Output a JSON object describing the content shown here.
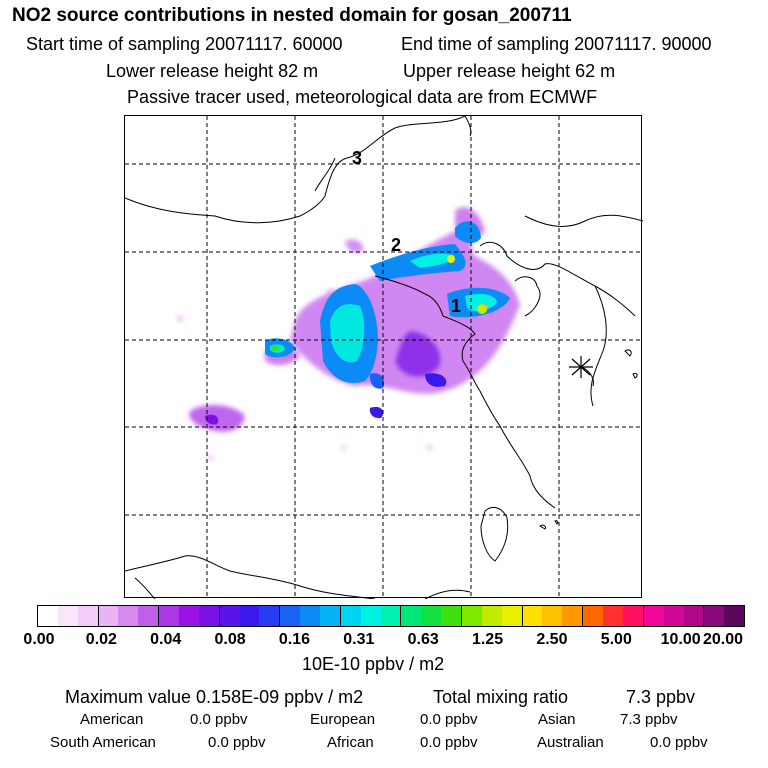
{
  "header": {
    "title": "NO2 source contributions in nested domain for gosan_200711",
    "start_label": "Start time of sampling 20071117. 60000",
    "end_label": "End time of sampling 20071117. 90000",
    "lower_label": "Lower release height   82 m",
    "upper_label": "Upper release height   62 m",
    "tracer_label": "Passive tracer used, meteorological data are from ECMWF"
  },
  "chart_data": {
    "type": "heatmap",
    "title": "NO2 source contributions in nested domain for gosan_200711",
    "colorbar_ticks": [
      "0.00",
      "0.02",
      "0.04",
      "0.08",
      "0.16",
      "0.31",
      "0.63",
      "1.25",
      "2.50",
      "5.00",
      "10.00",
      "20.00"
    ],
    "colorbar_unit": "10E-10 ppbv / m2",
    "trajectory_labels": [
      "1",
      "2",
      "3"
    ],
    "grid": true,
    "receptor_marker": "star"
  },
  "colorbar_colors": [
    "#ffffff",
    "#f9e6fb",
    "#f2cdf7",
    "#eab3f3",
    "#d68aee",
    "#c25fea",
    "#ad36e6",
    "#9b12e2",
    "#7a12e6",
    "#5a14ea",
    "#3b18ee",
    "#2a3cf2",
    "#1a62f5",
    "#0c8bf6",
    "#05b2f5",
    "#00d4f2",
    "#00f0e4",
    "#00f0b0",
    "#00e878",
    "#10e040",
    "#40e010",
    "#80e800",
    "#c0ec00",
    "#e8f000",
    "#ffe000",
    "#ffc000",
    "#ff9800",
    "#ff6800",
    "#ff3030",
    "#ff1060",
    "#f0089a",
    "#d0089a",
    "#b0088a",
    "#8a087a",
    "#5a065a"
  ],
  "footer": {
    "max_label": "Maximum value  0.158E-09 ppbv / m2",
    "total_label": "Total mixing ratio",
    "total_value": "7.3 ppbv",
    "american_label": "American",
    "american_value": "0.0 ppbv",
    "european_label": "European",
    "european_value": "0.0 ppbv",
    "asian_label": "Asian",
    "asian_value": "7.3 ppbv",
    "south_american_label": "South American",
    "south_american_value": "0.0 ppbv",
    "african_label": "African",
    "african_value": "0.0 ppbv",
    "australian_label": "Australian",
    "australian_value": "0.0 ppbv"
  }
}
